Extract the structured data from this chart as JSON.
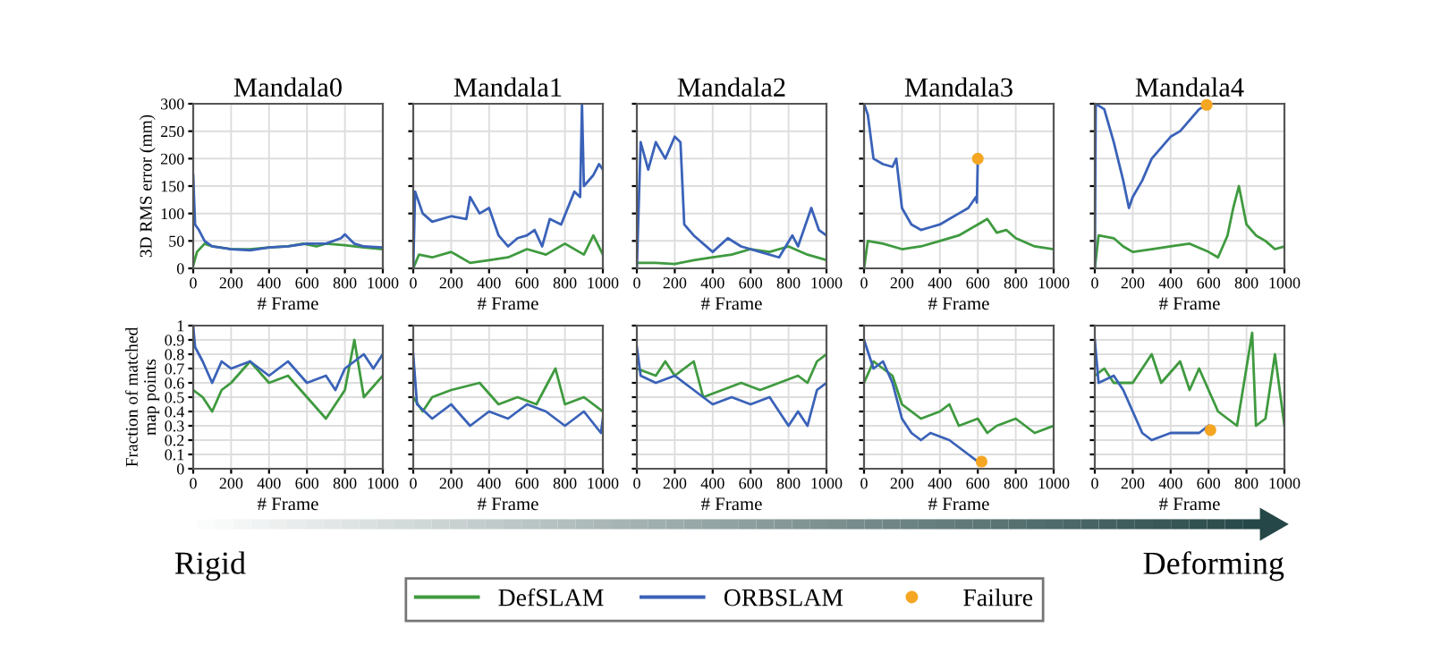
{
  "chart_data": [
    {
      "type": "line",
      "title": "Mandala0",
      "xlabel": "# Frame",
      "ylabel": "3D RMS error (mm)",
      "xlim": [
        0,
        1000
      ],
      "ylim": [
        0,
        300
      ],
      "xticks": [
        0,
        200,
        400,
        600,
        800,
        1000
      ],
      "yticks": [
        0,
        50,
        100,
        150,
        200,
        250,
        300
      ],
      "grid": true,
      "legend": "bottom",
      "series": [
        {
          "name": "DefSLAM",
          "color": "#3f9a3f",
          "x": [
            0,
            20,
            60,
            100,
            200,
            300,
            400,
            500,
            580,
            650,
            700,
            800,
            900,
            1000
          ],
          "values": [
            5,
            30,
            45,
            40,
            35,
            35,
            38,
            40,
            45,
            40,
            45,
            42,
            38,
            35
          ]
        },
        {
          "name": "ORBSLAM",
          "color": "#3a62b8",
          "x": [
            0,
            10,
            30,
            60,
            100,
            200,
            300,
            400,
            500,
            600,
            700,
            780,
            800,
            850,
            900,
            1000
          ],
          "values": [
            170,
            80,
            70,
            50,
            40,
            35,
            33,
            38,
            40,
            45,
            45,
            55,
            62,
            45,
            40,
            38
          ]
        }
      ]
    },
    {
      "type": "line",
      "title": "Mandala1",
      "xlabel": "# Frame",
      "xlim": [
        0,
        1000
      ],
      "ylim": [
        0,
        300
      ],
      "xticks": [
        0,
        200,
        400,
        600,
        800,
        1000
      ],
      "yticks": [
        0,
        50,
        100,
        150,
        200,
        250,
        300
      ],
      "grid": true,
      "tick_labels": "x",
      "series": [
        {
          "name": "DefSLAM",
          "color": "#3f9a3f",
          "x": [
            0,
            30,
            100,
            200,
            300,
            400,
            500,
            600,
            700,
            800,
            900,
            950,
            1000
          ],
          "values": [
            0,
            25,
            20,
            30,
            10,
            15,
            20,
            35,
            25,
            45,
            25,
            60,
            25
          ]
        },
        {
          "name": "ORBSLAM",
          "color": "#3a62b8",
          "x": [
            0,
            10,
            50,
            100,
            200,
            280,
            300,
            350,
            400,
            450,
            500,
            550,
            600,
            640,
            680,
            720,
            780,
            850,
            880,
            890,
            900,
            950,
            980,
            1000
          ],
          "values": [
            0,
            140,
            100,
            85,
            95,
            90,
            130,
            100,
            110,
            60,
            40,
            55,
            60,
            70,
            40,
            90,
            80,
            140,
            130,
            300,
            150,
            170,
            190,
            180
          ]
        }
      ]
    },
    {
      "type": "line",
      "title": "Mandala2",
      "xlabel": "# Frame",
      "xlim": [
        0,
        1000
      ],
      "ylim": [
        0,
        300
      ],
      "xticks": [
        0,
        200,
        400,
        600,
        800,
        1000
      ],
      "yticks": [
        0,
        50,
        100,
        150,
        200,
        250,
        300
      ],
      "grid": true,
      "tick_labels": "x",
      "series": [
        {
          "name": "DefSLAM",
          "color": "#3f9a3f",
          "x": [
            0,
            100,
            200,
            300,
            400,
            500,
            600,
            700,
            800,
            900,
            1000
          ],
          "values": [
            10,
            10,
            8,
            15,
            20,
            25,
            35,
            30,
            40,
            25,
            15
          ]
        },
        {
          "name": "ORBSLAM",
          "color": "#3a62b8",
          "x": [
            0,
            20,
            60,
            100,
            150,
            200,
            230,
            250,
            300,
            400,
            480,
            550,
            650,
            750,
            820,
            850,
            920,
            960,
            1000
          ],
          "values": [
            0,
            230,
            180,
            230,
            200,
            240,
            230,
            80,
            60,
            30,
            55,
            40,
            30,
            20,
            60,
            40,
            110,
            70,
            60
          ]
        }
      ]
    },
    {
      "type": "line",
      "title": "Mandala3",
      "xlabel": "# Frame",
      "xlim": [
        0,
        1000
      ],
      "ylim": [
        0,
        300
      ],
      "xticks": [
        0,
        200,
        400,
        600,
        800,
        1000
      ],
      "yticks": [
        0,
        50,
        100,
        150,
        200,
        250,
        300
      ],
      "grid": true,
      "tick_labels": "x",
      "series": [
        {
          "name": "DefSLAM",
          "color": "#3f9a3f",
          "x": [
            0,
            20,
            100,
            200,
            300,
            400,
            500,
            600,
            650,
            700,
            750,
            800,
            900,
            1000
          ],
          "values": [
            0,
            50,
            45,
            35,
            40,
            50,
            60,
            80,
            90,
            65,
            70,
            55,
            40,
            35
          ]
        },
        {
          "name": "ORBSLAM",
          "color": "#3a62b8",
          "x": [
            0,
            20,
            50,
            100,
            150,
            170,
            200,
            250,
            300,
            350,
            400,
            450,
            500,
            550,
            590,
            595,
            600
          ],
          "values": [
            300,
            280,
            200,
            190,
            185,
            200,
            110,
            80,
            70,
            75,
            80,
            90,
            100,
            110,
            130,
            120,
            200
          ]
        },
        {
          "name": "Failure",
          "type": "scatter",
          "color": "#f5a623",
          "x": [
            600
          ],
          "values": [
            200
          ]
        }
      ]
    },
    {
      "type": "line",
      "title": "Mandala4",
      "xlabel": "# Frame",
      "xlim": [
        0,
        1000
      ],
      "ylim": [
        0,
        300
      ],
      "xticks": [
        0,
        200,
        400,
        600,
        800,
        1000
      ],
      "yticks": [
        0,
        50,
        100,
        150,
        200,
        250,
        300
      ],
      "grid": true,
      "tick_labels": "x",
      "series": [
        {
          "name": "DefSLAM",
          "color": "#3f9a3f",
          "x": [
            0,
            20,
            100,
            150,
            200,
            300,
            400,
            500,
            600,
            650,
            700,
            730,
            760,
            800,
            850,
            900,
            950,
            1000
          ],
          "values": [
            0,
            60,
            55,
            40,
            30,
            35,
            40,
            45,
            30,
            20,
            60,
            110,
            150,
            80,
            60,
            50,
            35,
            40
          ]
        },
        {
          "name": "ORBSLAM",
          "color": "#3a62b8",
          "x": [
            0,
            5,
            50,
            100,
            150,
            180,
            200,
            250,
            300,
            350,
            400,
            450,
            500,
            550,
            590
          ],
          "values": [
            0,
            300,
            290,
            230,
            160,
            110,
            130,
            160,
            200,
            220,
            240,
            250,
            270,
            290,
            298
          ]
        },
        {
          "name": "Failure",
          "type": "scatter",
          "color": "#f5a623",
          "x": [
            590
          ],
          "values": [
            298
          ]
        }
      ]
    },
    {
      "type": "line",
      "xlabel": "# Frame",
      "ylabel": "Fraction of matched\nmap points",
      "xlim": [
        0,
        1000
      ],
      "ylim": [
        0,
        1
      ],
      "xticks": [
        0,
        200,
        400,
        600,
        800,
        1000
      ],
      "yticks": [
        0,
        0.1,
        0.2,
        0.3,
        0.4,
        0.5,
        0.6,
        0.7,
        0.8,
        0.9,
        1
      ],
      "grid": true,
      "annotations": [
        "Rigid"
      ],
      "series": [
        {
          "name": "DefSLAM",
          "color": "#3f9a3f",
          "x": [
            0,
            50,
            100,
            150,
            200,
            300,
            400,
            500,
            600,
            700,
            800,
            850,
            900,
            1000
          ],
          "values": [
            0.55,
            0.5,
            0.4,
            0.55,
            0.6,
            0.75,
            0.6,
            0.65,
            0.5,
            0.35,
            0.55,
            0.9,
            0.5,
            0.65
          ]
        },
        {
          "name": "ORBSLAM",
          "color": "#3a62b8",
          "x": [
            0,
            10,
            50,
            100,
            150,
            200,
            300,
            400,
            500,
            600,
            700,
            750,
            800,
            900,
            950,
            1000
          ],
          "values": [
            1.0,
            0.85,
            0.75,
            0.6,
            0.75,
            0.7,
            0.75,
            0.65,
            0.75,
            0.6,
            0.65,
            0.55,
            0.7,
            0.8,
            0.7,
            0.8
          ]
        }
      ]
    },
    {
      "type": "line",
      "xlabel": "# Frame",
      "xlim": [
        0,
        1000
      ],
      "ylim": [
        0,
        1
      ],
      "xticks": [
        0,
        200,
        400,
        600,
        800,
        1000
      ],
      "yticks": [
        0,
        0.1,
        0.2,
        0.3,
        0.4,
        0.5,
        0.6,
        0.7,
        0.8,
        0.9,
        1
      ],
      "grid": true,
      "tick_labels": "x",
      "series": [
        {
          "name": "DefSLAM",
          "color": "#3f9a3f",
          "x": [
            0,
            50,
            100,
            200,
            350,
            450,
            550,
            650,
            750,
            800,
            900,
            1000
          ],
          "values": [
            0.5,
            0.4,
            0.5,
            0.55,
            0.6,
            0.45,
            0.5,
            0.45,
            0.7,
            0.45,
            0.5,
            0.4
          ]
        },
        {
          "name": "ORBSLAM",
          "color": "#3a62b8",
          "x": [
            0,
            20,
            100,
            200,
            300,
            400,
            500,
            600,
            700,
            800,
            900,
            990,
            1000
          ],
          "values": [
            0.8,
            0.45,
            0.35,
            0.45,
            0.3,
            0.4,
            0.35,
            0.45,
            0.4,
            0.3,
            0.4,
            0.25,
            0.35
          ]
        }
      ]
    },
    {
      "type": "line",
      "xlabel": "# Frame",
      "xlim": [
        0,
        1000
      ],
      "ylim": [
        0,
        1
      ],
      "xticks": [
        0,
        200,
        400,
        600,
        800,
        1000
      ],
      "yticks": [
        0,
        0.1,
        0.2,
        0.3,
        0.4,
        0.5,
        0.6,
        0.7,
        0.8,
        0.9,
        1
      ],
      "grid": true,
      "tick_labels": "x",
      "series": [
        {
          "name": "DefSLAM",
          "color": "#3f9a3f",
          "x": [
            0,
            100,
            150,
            200,
            300,
            350,
            450,
            550,
            650,
            750,
            850,
            900,
            950,
            1000
          ],
          "values": [
            0.7,
            0.65,
            0.75,
            0.65,
            0.75,
            0.5,
            0.55,
            0.6,
            0.55,
            0.6,
            0.65,
            0.6,
            0.75,
            0.8
          ]
        },
        {
          "name": "ORBSLAM",
          "color": "#3a62b8",
          "x": [
            0,
            20,
            100,
            200,
            300,
            400,
            500,
            600,
            700,
            800,
            850,
            900,
            950,
            1000
          ],
          "values": [
            0.85,
            0.65,
            0.6,
            0.65,
            0.55,
            0.45,
            0.5,
            0.45,
            0.5,
            0.3,
            0.4,
            0.3,
            0.55,
            0.6
          ]
        }
      ]
    },
    {
      "type": "line",
      "xlabel": "# Frame",
      "xlim": [
        0,
        1000
      ],
      "ylim": [
        0,
        1
      ],
      "xticks": [
        0,
        200,
        400,
        600,
        800,
        1000
      ],
      "yticks": [
        0,
        0.1,
        0.2,
        0.3,
        0.4,
        0.5,
        0.6,
        0.7,
        0.8,
        0.9,
        1
      ],
      "grid": true,
      "tick_labels": "x",
      "series": [
        {
          "name": "DefSLAM",
          "color": "#3f9a3f",
          "x": [
            0,
            50,
            150,
            200,
            300,
            400,
            450,
            500,
            600,
            650,
            700,
            800,
            900,
            1000
          ],
          "values": [
            0.6,
            0.75,
            0.65,
            0.45,
            0.35,
            0.4,
            0.45,
            0.3,
            0.35,
            0.25,
            0.3,
            0.35,
            0.25,
            0.3
          ]
        },
        {
          "name": "ORBSLAM",
          "color": "#3a62b8",
          "x": [
            0,
            50,
            100,
            150,
            200,
            250,
            300,
            350,
            450,
            500,
            550,
            600
          ],
          "values": [
            0.9,
            0.7,
            0.75,
            0.6,
            0.35,
            0.25,
            0.2,
            0.25,
            0.2,
            0.15,
            0.1,
            0.05
          ]
        },
        {
          "name": "Failure",
          "type": "scatter",
          "color": "#f5a623",
          "x": [
            620
          ],
          "values": [
            0.05
          ]
        }
      ]
    },
    {
      "type": "line",
      "xlabel": "# Frame",
      "xlim": [
        0,
        1000
      ],
      "ylim": [
        0,
        1
      ],
      "xticks": [
        0,
        200,
        400,
        600,
        800,
        1000
      ],
      "yticks": [
        0,
        0.1,
        0.2,
        0.3,
        0.4,
        0.5,
        0.6,
        0.7,
        0.8,
        0.9,
        1
      ],
      "grid": true,
      "tick_labels": "x",
      "annotations": [
        "Deforming"
      ],
      "series": [
        {
          "name": "DefSLAM",
          "color": "#3f9a3f",
          "x": [
            0,
            50,
            100,
            200,
            300,
            350,
            450,
            500,
            550,
            650,
            700,
            750,
            830,
            850,
            900,
            950,
            1000
          ],
          "values": [
            0.65,
            0.7,
            0.6,
            0.6,
            0.8,
            0.6,
            0.75,
            0.55,
            0.7,
            0.4,
            0.35,
            0.3,
            0.95,
            0.3,
            0.35,
            0.8,
            0.3
          ]
        },
        {
          "name": "ORBSLAM",
          "color": "#3a62b8",
          "x": [
            0,
            20,
            100,
            150,
            200,
            250,
            300,
            400,
            500,
            550,
            600
          ],
          "values": [
            0.9,
            0.6,
            0.65,
            0.55,
            0.4,
            0.25,
            0.2,
            0.25,
            0.25,
            0.25,
            0.3
          ]
        },
        {
          "name": "Failure",
          "type": "scatter",
          "color": "#f5a623",
          "x": [
            610
          ],
          "values": [
            0.27
          ]
        }
      ]
    }
  ]
}
